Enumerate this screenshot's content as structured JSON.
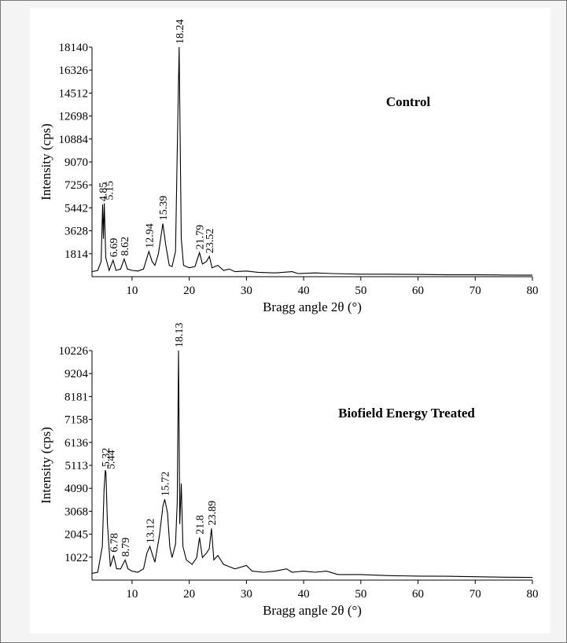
{
  "chart_data": [
    {
      "type": "line",
      "annotation": "Control",
      "xlabel": "Bragg angle 2θ (°)",
      "ylabel": "Intensity (cps)",
      "color": "#000000",
      "xlim": [
        3,
        80
      ],
      "xticks": [
        10,
        20,
        30,
        40,
        50,
        60,
        70,
        80
      ],
      "ylim": [
        0,
        18140
      ],
      "yticks": [
        1814,
        3628,
        5442,
        7256,
        9070,
        10884,
        12698,
        14512,
        16326,
        18140
      ],
      "x": [
        3,
        4,
        4.6,
        4.85,
        5.0,
        5.15,
        5.4,
        6,
        6.69,
        7.2,
        8,
        8.62,
        9.2,
        10,
        11,
        12,
        12.94,
        13.5,
        14,
        14.6,
        15.39,
        15.9,
        16.5,
        17,
        17.6,
        17.9,
        18.24,
        18.6,
        19,
        20,
        21,
        21.79,
        22.3,
        23,
        23.52,
        24,
        25,
        26,
        27,
        28,
        30,
        32,
        35,
        38,
        39,
        42,
        45,
        50,
        55,
        60,
        65,
        70,
        75,
        80
      ],
      "values": [
        400,
        500,
        1200,
        5700,
        3000,
        5800,
        1500,
        500,
        1300,
        500,
        600,
        1400,
        600,
        500,
        450,
        600,
        2000,
        1200,
        900,
        1800,
        4200,
        2500,
        900,
        800,
        2000,
        10000,
        18140,
        3000,
        900,
        700,
        800,
        1900,
        1000,
        1200,
        1600,
        700,
        900,
        500,
        600,
        400,
        450,
        350,
        300,
        400,
        250,
        300,
        250,
        200,
        200,
        180,
        150,
        150,
        130,
        120
      ],
      "peaks": [
        4.85,
        5.15,
        6.69,
        8.62,
        12.94,
        15.39,
        18.24,
        21.79,
        23.52
      ]
    },
    {
      "type": "line",
      "annotation": "Biofield Energy Treated",
      "xlabel": "Bragg angle 2θ (°)",
      "ylabel": "Intensity (cps)",
      "color": "#000000",
      "xlim": [
        3,
        80
      ],
      "xticks": [
        10,
        20,
        30,
        40,
        50,
        60,
        70,
        80
      ],
      "ylim": [
        0,
        10226
      ],
      "yticks": [
        1022,
        2045,
        3068,
        4090,
        5113,
        6136,
        7158,
        8181,
        9204,
        10226
      ],
      "x": [
        3,
        4,
        4.8,
        5.1,
        5.32,
        5.44,
        5.7,
        6.2,
        6.78,
        7.3,
        8,
        8.79,
        9.3,
        10,
        11,
        12,
        12.6,
        13.12,
        13.6,
        14,
        14.8,
        15.4,
        15.72,
        16.2,
        16.6,
        17,
        17.6,
        17.9,
        18.13,
        18.35,
        18.6,
        18.9,
        19.5,
        20.5,
        21.3,
        21.8,
        22.3,
        23,
        23.5,
        23.89,
        24.3,
        25,
        26,
        27,
        28,
        30,
        31,
        33,
        35,
        37,
        38,
        40,
        42,
        44,
        46,
        50,
        55,
        60,
        65,
        70,
        75,
        80
      ],
      "values": [
        300,
        350,
        1500,
        4000,
        4900,
        4800,
        2500,
        600,
        1100,
        500,
        500,
        900,
        500,
        400,
        350,
        500,
        1200,
        1500,
        1100,
        800,
        2000,
        3300,
        3600,
        3000,
        1500,
        1000,
        1600,
        3500,
        10226,
        2500,
        4300,
        1500,
        900,
        700,
        1000,
        1900,
        1000,
        1200,
        1400,
        2300,
        900,
        1100,
        700,
        600,
        500,
        650,
        400,
        350,
        400,
        500,
        350,
        400,
        350,
        400,
        250,
        250,
        200,
        180,
        170,
        150,
        130,
        120
      ],
      "peaks": [
        5.32,
        5.44,
        6.78,
        8.79,
        13.12,
        15.72,
        18.13,
        21.8,
        23.89
      ]
    }
  ]
}
